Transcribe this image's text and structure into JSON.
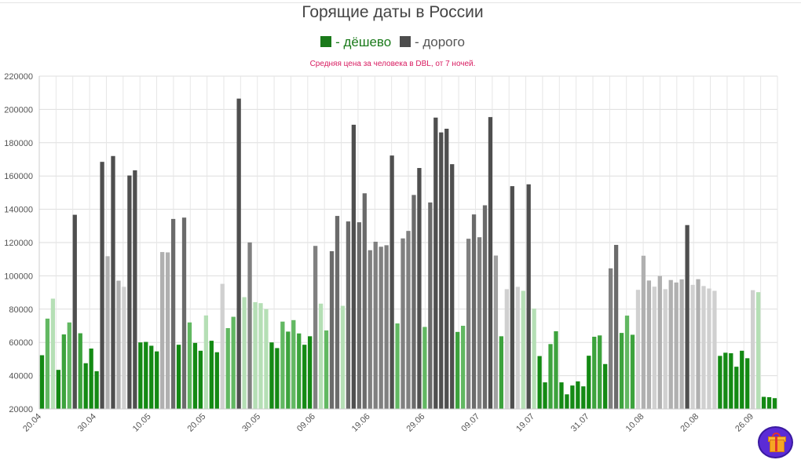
{
  "title": "Горящие даты в России",
  "legend": {
    "items": [
      {
        "label": "- дёшево",
        "color": "#1a7a1a",
        "text_color": "#1a7a1a"
      },
      {
        "label": "- дорого",
        "color": "#4d4d4d",
        "text_color": "#555555"
      }
    ]
  },
  "subtitle": "Средняя цена за человека в DBL, от 7 ночей.",
  "chart_data": {
    "type": "bar",
    "title": "Горящие даты в России",
    "subtitle": "Средняя цена за человека в DBL, от 7 ночей.",
    "ylim": [
      20000,
      220000
    ],
    "yticks": [
      20000,
      40000,
      60000,
      80000,
      100000,
      120000,
      140000,
      160000,
      180000,
      200000,
      220000
    ],
    "x_tick_labels": [
      "20.04",
      "30.04",
      "10.05",
      "20.05",
      "30.05",
      "09.06",
      "19.06",
      "29.06",
      "09.07",
      "19.07",
      "31.07",
      "10.08",
      "20.08",
      "26.09"
    ],
    "grid": true,
    "legend_position": "top-center",
    "color_scale": {
      "cheap": "#1a7a1a",
      "expensive": "#4d4d4d"
    },
    "values": [
      52300,
      74300,
      86300,
      43500,
      64800,
      72000,
      136700,
      65500,
      47500,
      56300,
      42700,
      168500,
      111800,
      172000,
      97100,
      93400,
      160300,
      163400,
      60000,
      60300,
      58000,
      54600,
      114300,
      114100,
      134200,
      58600,
      135000,
      72000,
      59700,
      55000,
      76200,
      61000,
      54100,
      95200,
      68600,
      75400,
      206500,
      87200,
      120100,
      84200,
      83600,
      80000,
      60000,
      56600,
      72500,
      66500,
      73400,
      65400,
      58600,
      63700,
      118000,
      83300,
      67200,
      114800,
      136000,
      82000,
      132700,
      190800,
      132200,
      149600,
      115400,
      120500,
      117500,
      118400,
      172300,
      71400,
      122500,
      127000,
      148600,
      164800,
      69300,
      144100,
      195100,
      186200,
      188400,
      167100,
      66300,
      70000,
      122300,
      136900,
      123200,
      142400,
      195400,
      112200,
      63700,
      92000,
      153900,
      93400,
      91000,
      155000,
      80300,
      51800,
      36000,
      59000,
      66700,
      36000,
      28800,
      34100,
      36600,
      33600,
      52000,
      63400,
      64200,
      47000,
      104500,
      118600,
      65700,
      76100,
      64600,
      91600,
      112100,
      97200,
      93500,
      99900,
      92000,
      97500,
      96000,
      97900,
      130500,
      94600,
      98000,
      93900,
      92400,
      91000,
      51900,
      53800,
      53500,
      45400,
      55000,
      50500,
      91400,
      90200,
      27300,
      27100,
      26500
    ],
    "colors": [
      "#148a14",
      "#62b862",
      "#b5dfb5",
      "#148a14",
      "#3da33d",
      "#62b862",
      "#4f4f4f",
      "#3da33d",
      "#148a14",
      "#148a14",
      "#148a14",
      "#4f4f4f",
      "#b0b0b0",
      "#4f4f4f",
      "#b0b0b0",
      "#d0d0d0",
      "#4f4f4f",
      "#4f4f4f",
      "#148a14",
      "#148a14",
      "#148a14",
      "#148a14",
      "#b0b0b0",
      "#b0b0b0",
      "#6b6b6b",
      "#148a14",
      "#6b6b6b",
      "#62b862",
      "#148a14",
      "#148a14",
      "#b5dfb5",
      "#148a14",
      "#148a14",
      "#d0d0d0",
      "#62b862",
      "#62b862",
      "#4f4f4f",
      "#b5dfb5",
      "#808080",
      "#b5dfb5",
      "#b5dfb5",
      "#b5dfb5",
      "#148a14",
      "#148a14",
      "#62b862",
      "#3da33d",
      "#62b862",
      "#3da33d",
      "#148a14",
      "#148a14",
      "#808080",
      "#b5dfb5",
      "#62b862",
      "#6b6b6b",
      "#6b6b6b",
      "#b5dfb5",
      "#6b6b6b",
      "#4f4f4f",
      "#6b6b6b",
      "#6b6b6b",
      "#808080",
      "#808080",
      "#808080",
      "#808080",
      "#4f4f4f",
      "#62b862",
      "#808080",
      "#808080",
      "#6b6b6b",
      "#4f4f4f",
      "#62b862",
      "#6b6b6b",
      "#4f4f4f",
      "#4f4f4f",
      "#4f4f4f",
      "#4f4f4f",
      "#3da33d",
      "#62b862",
      "#808080",
      "#6b6b6b",
      "#808080",
      "#6b6b6b",
      "#4f4f4f",
      "#a0a0a0",
      "#3da33d",
      "#d0d0d0",
      "#4f4f4f",
      "#d0d0d0",
      "#b5dfb5",
      "#4f4f4f",
      "#b5dfb5",
      "#148a14",
      "#148a14",
      "#3da33d",
      "#3da33d",
      "#148a14",
      "#148a14",
      "#148a14",
      "#148a14",
      "#148a14",
      "#148a14",
      "#3da33d",
      "#3da33d",
      "#148a14",
      "#808080",
      "#6b6b6b",
      "#3da33d",
      "#62b862",
      "#3da33d",
      "#d0d0d0",
      "#b0b0b0",
      "#b0b0b0",
      "#d0d0d0",
      "#b0b0b0",
      "#d0d0d0",
      "#b0b0b0",
      "#b0b0b0",
      "#b0b0b0",
      "#4f4f4f",
      "#d0d0d0",
      "#b0b0b0",
      "#d0d0d0",
      "#d0d0d0",
      "#d0d0d0",
      "#148a14",
      "#148a14",
      "#148a14",
      "#148a14",
      "#148a14",
      "#148a14",
      "#d0d0d0",
      "#b5dfb5",
      "#148a14",
      "#148a14",
      "#148a14"
    ]
  },
  "gift_button": {
    "icon": "gift-icon"
  }
}
